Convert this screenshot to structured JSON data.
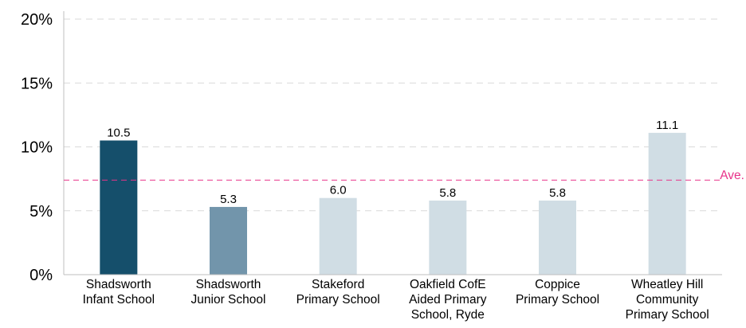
{
  "chart_data": {
    "type": "bar",
    "categories": [
      [
        "Shadsworth",
        "Infant School"
      ],
      [
        "Shadsworth",
        "Junior School"
      ],
      [
        "Stakeford",
        "Primary School"
      ],
      [
        "Oakfield CofE",
        "Aided Primary",
        "School, Ryde"
      ],
      [
        "Coppice",
        "Primary School"
      ],
      [
        "Wheatley Hill",
        "Community",
        "Primary School"
      ]
    ],
    "values": [
      10.5,
      5.3,
      6.0,
      5.8,
      5.8,
      11.1
    ],
    "data_labels": [
      "10.5",
      "5.3",
      "6.0",
      "5.8",
      "5.8",
      "11.1"
    ],
    "bar_colors": [
      "#154f6b",
      "#7295ab",
      "#d0dde4",
      "#d0dde4",
      "#d0dde4",
      "#d0dde4"
    ],
    "y_ticks": [
      {
        "value": 0,
        "label": "0%"
      },
      {
        "value": 5,
        "label": "5%"
      },
      {
        "value": 10,
        "label": "10%"
      },
      {
        "value": 15,
        "label": "15%"
      },
      {
        "value": 20,
        "label": "20%"
      }
    ],
    "ylim": [
      0,
      20
    ],
    "average": {
      "value": 7.4,
      "label": "Ave.",
      "color": "#e8338a"
    },
    "grid": true,
    "grid_color": "#d9d9d9",
    "axis_color": "#bfbfbf",
    "title": "",
    "xlabel": "",
    "ylabel": ""
  }
}
